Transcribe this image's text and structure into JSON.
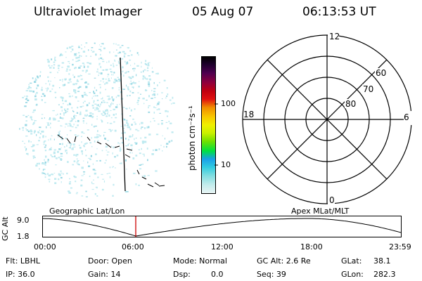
{
  "header": {
    "instrument": "Ultraviolet Imager",
    "date": "05 Aug 07",
    "time": "06:13:53 UT"
  },
  "colorbar": {
    "label": "photon cm⁻²s⁻¹",
    "ticks": [
      "100",
      "10"
    ],
    "colors": [
      "#e8f4f4",
      "#c4ecec",
      "#7fdde0",
      "#32cce0",
      "#19a0e8",
      "#00e040",
      "#70e000",
      "#c8f000",
      "#f0f000",
      "#f8c800",
      "#f08c00",
      "#e01010",
      "#c00010",
      "#90003c",
      "#500050",
      "#200030",
      "#000000"
    ]
  },
  "polar_plot": {
    "mlt_labels": {
      "top": "12",
      "right": "6",
      "bottom": "0",
      "left": "18"
    },
    "lat_labels": [
      "60",
      "70",
      "80"
    ],
    "line_color": "#000000"
  },
  "timeline": {
    "ylabel": "GC Alt",
    "yticks": [
      "9.0",
      "1.8"
    ],
    "left_label": "Geographic Lat/Lon",
    "right_label": "Apex MLat/MLT",
    "xticks": [
      "00:00",
      "06:00",
      "12:00",
      "18:00",
      "23:59"
    ],
    "marker_color": "#cc0000"
  },
  "info": {
    "flt": "Flt: LBHL",
    "ip": "IP: 36.0",
    "door": "Door: Open",
    "gain": "Gain: 14",
    "mode": "Mode: Normal",
    "dsp": "Dsp:",
    "dsp_val": "0.0",
    "gcalt": "GC Alt: 2.6 Re",
    "seq": "Seq: 39",
    "glat": "GLat:",
    "glat_val": "38.1",
    "glon": "GLon:",
    "glon_val": "282.3"
  },
  "image_colors": {
    "speckle": "#bfeaf0",
    "speckle_dark": "#9ad8e4",
    "line": "#000000"
  }
}
